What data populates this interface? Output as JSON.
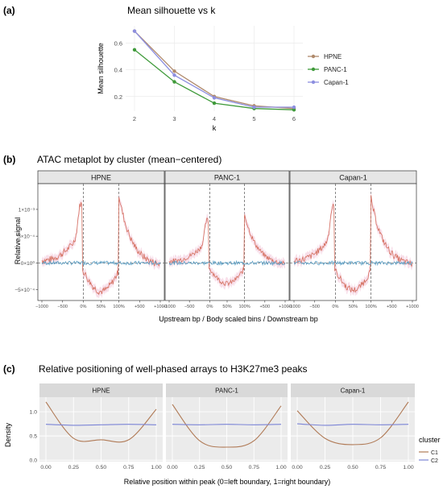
{
  "panels": {
    "a": {
      "label": "(a)",
      "title": "Mean silhouette vs k",
      "xlabel": "k",
      "ylabel": "Mean silhouette"
    },
    "b": {
      "label": "(b)",
      "title": "ATAC metaplot by cluster (mean−centered)",
      "xlabel": "Upstream bp / Body scaled bins / Downstream bp",
      "ylabel": "Relative signal"
    },
    "c": {
      "label": "(c)",
      "title": "Relative positioning of well-phased arrays to H3K27me3 peaks",
      "xlabel": "Relative position within peak (0=left boundary, 1=right boundary)",
      "ylabel": "Density",
      "legend_title": "cluster"
    }
  },
  "colors": {
    "HPNE": "#b08a6c",
    "PANC-1": "#3f9a3a",
    "Capan-1": "#8d8fe0",
    "C1": "#b07a56",
    "C2": "#7b84d6",
    "ATAC_C1": "#d46f5e",
    "ATAC_C2": "#5a9ec4",
    "ribbon": "#f3c9dc"
  },
  "chart_data": [
    {
      "type": "line",
      "title": "Mean silhouette vs k",
      "xlabel": "k",
      "ylabel": "Mean silhouette",
      "x": [
        2,
        3,
        4,
        5,
        6
      ],
      "ylim": [
        0.09,
        0.73
      ],
      "yticks": [
        "0.2",
        "0.4",
        "0.6"
      ],
      "series": [
        {
          "name": "HPNE",
          "values": [
            0.69,
            0.39,
            0.2,
            0.13,
            0.11
          ]
        },
        {
          "name": "PANC-1",
          "values": [
            0.55,
            0.31,
            0.15,
            0.11,
            0.1
          ]
        },
        {
          "name": "Capan-1",
          "values": [
            0.69,
            0.36,
            0.19,
            0.12,
            0.12
          ]
        }
      ],
      "legend_position": "right"
    },
    {
      "type": "line",
      "title": "ATAC metaplot by cluster (mean−centered)",
      "xlabel": "Upstream bp / Body scaled bins / Downstream bp",
      "ylabel": "Relative signal",
      "facets": [
        "HPNE",
        "PANC-1",
        "Capan-1"
      ],
      "xticks": [
        "−1000",
        "−500",
        "0%",
        "50%",
        "100%",
        "+500",
        "+1000"
      ],
      "yticks": [
        "1×10⁻³",
        "5×10⁻⁴",
        "0×10⁰",
        "−5×10⁻⁴"
      ],
      "ylim": [
        -0.0007,
        0.00148
      ],
      "reference_lines": {
        "x": [
          0,
          100
        ],
        "y": 0
      }
    },
    {
      "type": "line",
      "title": "Relative positioning of well-phased arrays to H3K27me3 peaks",
      "xlabel": "Relative position within peak (0=left boundary, 1=right boundary)",
      "ylabel": "Density",
      "facets": [
        "HPNE",
        "PANC-1",
        "Capan-1"
      ],
      "x": [
        0,
        0.25,
        0.5,
        0.75,
        1
      ],
      "xticks": [
        "0.00",
        "0.25",
        "0.50",
        "0.75",
        "1.00"
      ],
      "yticks": [
        "0.0",
        "0.5",
        "1.0"
      ],
      "ylim": [
        -0.03,
        1.3
      ],
      "legend_title": "cluster",
      "legend_position": "right",
      "series": [
        {
          "name": "C1",
          "panels": {
            "HPNE": [
              1.2,
              0.45,
              0.42,
              0.42,
              1.05
            ],
            "PANC-1": [
              1.15,
              0.4,
              0.27,
              0.4,
              1.12
            ],
            "Capan-1": [
              1.02,
              0.45,
              0.32,
              0.46,
              1.2
            ]
          }
        },
        {
          "name": "C2",
          "panels": {
            "HPNE": [
              0.74,
              0.72,
              0.73,
              0.74,
              0.73
            ],
            "PANC-1": [
              0.74,
              0.73,
              0.74,
              0.73,
              0.74
            ],
            "Capan-1": [
              0.75,
              0.72,
              0.74,
              0.73,
              0.74
            ]
          }
        }
      ]
    }
  ]
}
